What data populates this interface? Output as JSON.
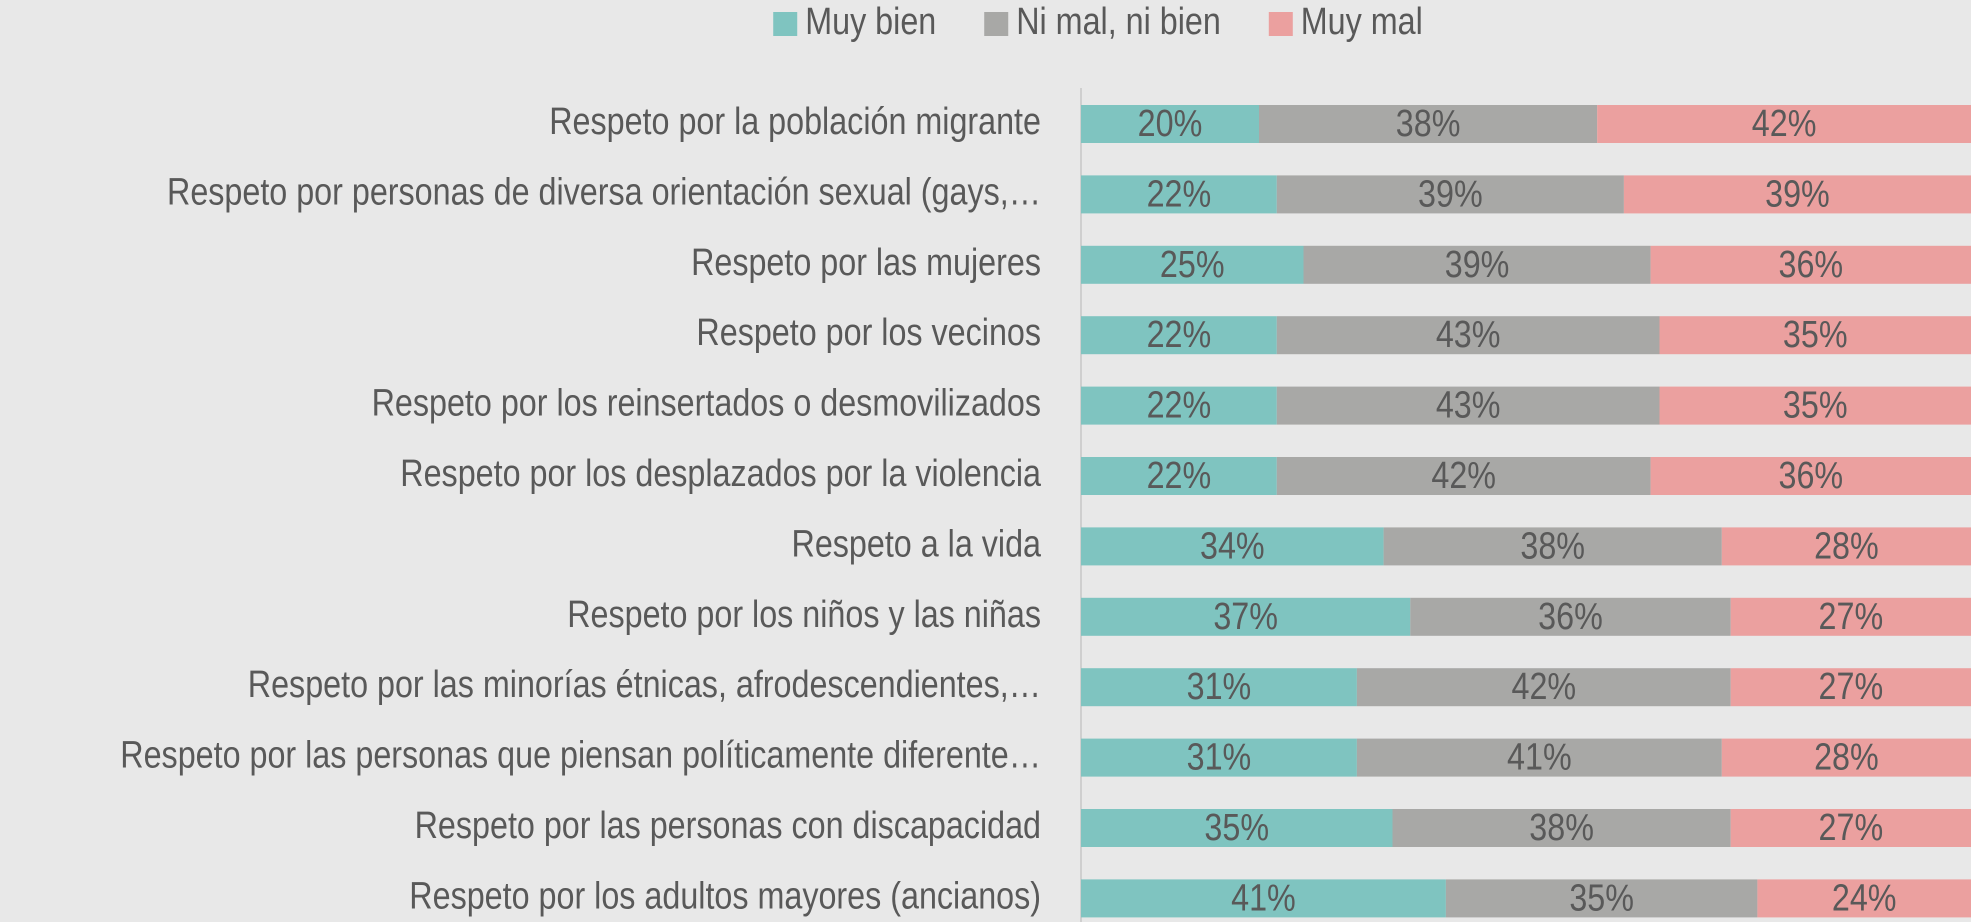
{
  "chart_data": {
    "type": "bar",
    "orientation": "horizontal",
    "stacked": true,
    "categories": [
      "Respeto por la población migrante",
      "Respeto por personas de diversa orientación sexual (gays,…",
      "Respeto por las mujeres",
      "Respeto por los vecinos",
      "Respeto por los reinsertados o desmovilizados",
      "Respeto por los desplazados por la violencia",
      "Respeto a la vida",
      "Respeto por los niños y las niñas",
      "Respeto por las minorías étnicas, afrodescendientes,…",
      "Respeto por las personas que piensan políticamente diferente…",
      "Respeto por las personas con discapacidad",
      "Respeto por los adultos mayores (ancianos)"
    ],
    "series": [
      {
        "name": "Muy bien",
        "color": "#7fc4c0",
        "values": [
          20,
          22,
          25,
          22,
          22,
          22,
          34,
          37,
          31,
          31,
          35,
          41
        ],
        "value_labels": [
          "20%",
          "22%",
          "25%",
          "22%",
          "22%",
          "22%",
          "34%",
          "37%",
          "31%",
          "31%",
          "35%",
          "41%"
        ]
      },
      {
        "name": "Ni mal, ni bien",
        "color": "#a8a8a6",
        "values": [
          38,
          39,
          39,
          43,
          43,
          42,
          38,
          36,
          42,
          41,
          38,
          35
        ],
        "value_labels": [
          "38%",
          "39%",
          "39%",
          "43%",
          "43%",
          "42%",
          "38%",
          "36%",
          "42%",
          "41%",
          "38%",
          "35%"
        ]
      },
      {
        "name": "Muy mal",
        "color": "#eba09f",
        "values": [
          42,
          39,
          36,
          35,
          35,
          36,
          28,
          27,
          27,
          28,
          27,
          24
        ],
        "value_labels": [
          "42%",
          "39%",
          "36%",
          "35%",
          "35%",
          "36%",
          "28%",
          "27%",
          "27%",
          "28%",
          "27%",
          "24%"
        ]
      }
    ],
    "xlim": [
      0,
      100
    ],
    "legend": "top"
  }
}
